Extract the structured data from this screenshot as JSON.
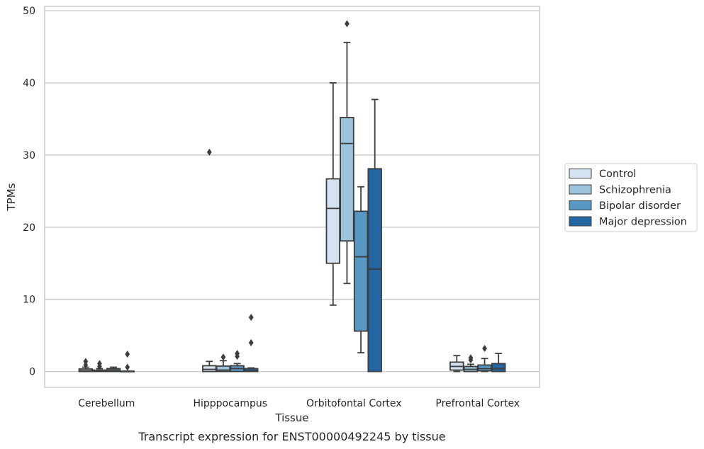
{
  "chart_data": {
    "type": "box",
    "xlabel": "Tissue",
    "ylabel": "TPMs",
    "caption": "Transcript expression for ENST00000492245 by tissue",
    "categories": [
      "Cerebellum",
      "Hipppocampus",
      "Orbitofontal Cortex",
      "Prefrontal Cortex"
    ],
    "ylim": [
      -2.2,
      50.6
    ],
    "yticks": [
      0,
      10,
      20,
      30,
      40,
      50
    ],
    "grid": true,
    "legend_position": "right",
    "series": [
      {
        "name": "Control",
        "color": "#d4e3f1",
        "boxes": [
          {
            "whislo": 0,
            "q1": 0,
            "med": 0.1,
            "q3": 0.35,
            "whishi": 0.6,
            "fliers": [
              0.9,
              1.4
            ]
          },
          {
            "whislo": 0,
            "q1": 0,
            "med": 0.3,
            "q3": 0.8,
            "whishi": 1.4,
            "fliers": [
              30.4
            ]
          },
          {
            "whislo": 9.2,
            "q1": 15.0,
            "med": 22.6,
            "q3": 26.7,
            "whishi": 40.0,
            "fliers": []
          },
          {
            "whislo": 0,
            "q1": 0.2,
            "med": 0.7,
            "q3": 1.3,
            "whishi": 2.2,
            "fliers": []
          }
        ]
      },
      {
        "name": "Schizophrenia",
        "color": "#9cc4dd",
        "boxes": [
          {
            "whislo": 0,
            "q1": 0,
            "med": 0.05,
            "q3": 0.2,
            "whishi": 0.4,
            "fliers": [
              0.7,
              1.1
            ]
          },
          {
            "whislo": 0,
            "q1": 0,
            "med": 0.2,
            "q3": 0.75,
            "whishi": 1.5,
            "fliers": [
              2.0
            ]
          },
          {
            "whislo": 12.2,
            "q1": 18.1,
            "med": 31.6,
            "q3": 35.2,
            "whishi": 45.6,
            "fliers": [
              48.2
            ]
          },
          {
            "whislo": 0,
            "q1": 0,
            "med": 0.3,
            "q3": 0.7,
            "whishi": 1.0,
            "fliers": [
              1.6,
              1.9
            ]
          }
        ]
      },
      {
        "name": "Bipolar disorder",
        "color": "#5898c5",
        "boxes": [
          {
            "whislo": 0,
            "q1": 0,
            "med": 0.2,
            "q3": 0.4,
            "whishi": 0.6,
            "fliers": []
          },
          {
            "whislo": 0,
            "q1": 0,
            "med": 0.4,
            "q3": 0.8,
            "whishi": 1.1,
            "fliers": [
              2.1,
              2.5
            ]
          },
          {
            "whislo": 2.6,
            "q1": 5.6,
            "med": 15.9,
            "q3": 22.2,
            "whishi": 25.6,
            "fliers": []
          },
          {
            "whislo": 0,
            "q1": 0.1,
            "med": 0.4,
            "q3": 0.9,
            "whishi": 1.8,
            "fliers": [
              3.2
            ]
          }
        ]
      },
      {
        "name": "Major depression",
        "color": "#2565a4",
        "boxes": [
          {
            "whislo": 0,
            "q1": 0,
            "med": 0,
            "q3": 0.05,
            "whishi": 0.05,
            "fliers": [
              0.6,
              2.4
            ]
          },
          {
            "whislo": 0,
            "q1": 0,
            "med": 0.1,
            "q3": 0.4,
            "whishi": 0.5,
            "fliers": [
              4.0,
              7.5
            ]
          },
          {
            "whislo": 0,
            "q1": 0,
            "med": 14.2,
            "q3": 28.1,
            "whishi": 37.7,
            "fliers": []
          },
          {
            "whislo": 0,
            "q1": 0,
            "med": 0.4,
            "q3": 1.1,
            "whishi": 2.5,
            "fliers": []
          }
        ]
      }
    ]
  }
}
